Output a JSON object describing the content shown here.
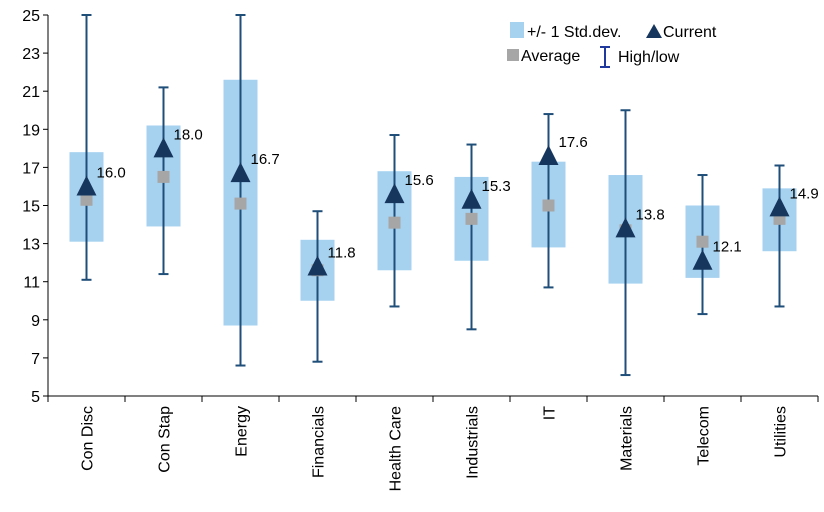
{
  "chart_data": {
    "type": "box",
    "categories": [
      "Con Disc",
      "Con Stap",
      "Energy",
      "Financials",
      "Health Care",
      "Industrials",
      "IT",
      "Materials",
      "Telecom",
      "Utilities"
    ],
    "high": [
      25.0,
      21.2,
      25.0,
      14.7,
      18.7,
      18.2,
      19.8,
      20.0,
      16.6,
      17.1
    ],
    "low": [
      11.1,
      11.4,
      6.6,
      6.8,
      9.7,
      8.5,
      10.7,
      6.1,
      9.3,
      9.7
    ],
    "std_upper": [
      17.8,
      19.2,
      21.6,
      13.2,
      16.8,
      16.5,
      17.3,
      16.6,
      15.0,
      15.9
    ],
    "std_lower": [
      13.1,
      13.9,
      8.7,
      10.0,
      11.6,
      12.1,
      12.8,
      10.9,
      11.2,
      12.6
    ],
    "average": [
      15.3,
      16.5,
      15.1,
      11.6,
      14.1,
      14.3,
      15.0,
      13.7,
      13.1,
      14.3
    ],
    "current": [
      16.0,
      18.0,
      16.7,
      11.8,
      15.6,
      15.3,
      17.6,
      13.8,
      12.1,
      14.9
    ],
    "current_labels": [
      "16.0",
      "18.0",
      "16.7",
      "11.8",
      "15.6",
      "15.3",
      "17.6",
      "13.8",
      "12.1",
      "14.9"
    ],
    "ylim": [
      5,
      25
    ],
    "y_ticks": [
      "5",
      "7",
      "9",
      "11",
      "13",
      "15",
      "17",
      "19",
      "21",
      "23",
      "25"
    ],
    "legend": {
      "std": "+/- 1 Std.dev.",
      "current": "Current",
      "average": "Average",
      "highlow": "High/low"
    },
    "colors": {
      "std_box": "#a6d2f0",
      "whisker": "#1f4e79",
      "current": "#17365d",
      "average": "#a6a6a6"
    }
  }
}
